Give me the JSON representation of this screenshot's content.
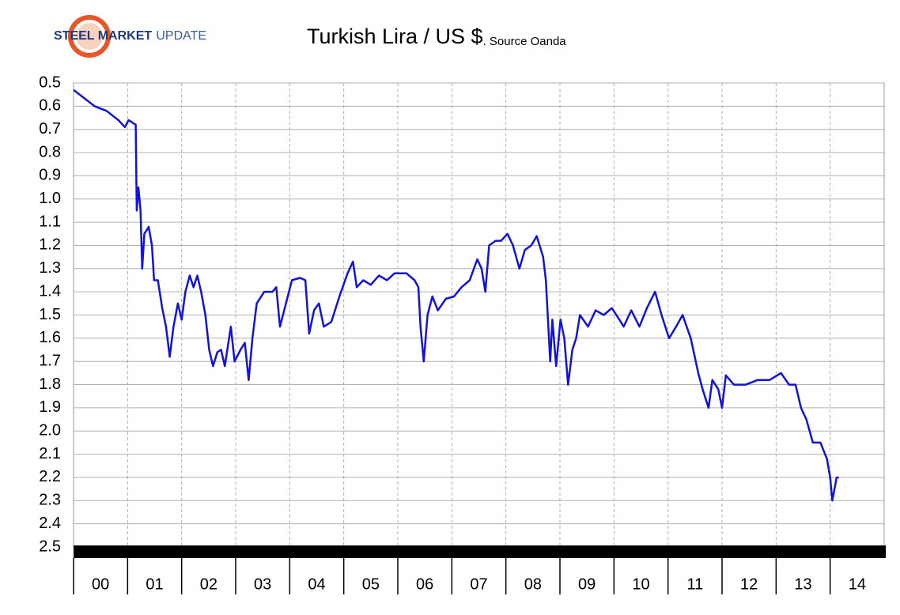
{
  "logo": {
    "bold": "STEEL MARKET",
    "light": "UPDATE"
  },
  "chart_data": {
    "type": "line",
    "title": "Turkish Lira / US $",
    "subtitle": ". Source Oanda",
    "categories": [
      "00",
      "01",
      "02",
      "03",
      "04",
      "05",
      "06",
      "07",
      "08",
      "09",
      "10",
      "11",
      "12",
      "13",
      "14"
    ],
    "xlim": [
      0,
      15
    ],
    "ylim": [
      2.5,
      0.5
    ],
    "yticks": [
      0.5,
      0.6,
      0.7,
      0.8,
      0.9,
      {
        "value": 1,
        "label": "1.0"
      },
      1.1,
      1.2,
      1.3,
      1.4,
      1.5,
      1.6,
      1.7,
      1.8,
      1.9,
      {
        "value": 2,
        "label": "2.0"
      },
      2.1,
      2.2,
      2.3,
      2.4,
      2.5
    ],
    "grid": true,
    "series": [
      {
        "color": "#1212e0",
        "x": [
          0,
          0.39,
          0.61,
          0.83,
          0.95,
          1.02,
          1.15,
          1.17,
          1.2,
          1.24,
          1.27,
          1.31,
          1.39,
          1.45,
          1.49,
          1.56,
          1.64,
          1.71,
          1.78,
          1.85,
          1.93,
          2.0,
          2.07,
          2.15,
          2.22,
          2.29,
          2.36,
          2.44,
          2.51,
          2.58,
          2.66,
          2.73,
          2.8,
          2.91,
          2.98,
          3.09,
          3.17,
          3.24,
          3.31,
          3.39,
          3.53,
          3.68,
          3.75,
          3.82,
          3.93,
          4.04,
          4.19,
          4.29,
          4.36,
          4.45,
          4.54,
          4.63,
          4.77,
          4.92,
          5.07,
          5.17,
          5.24,
          5.36,
          5.5,
          5.65,
          5.8,
          5.94,
          6.16,
          6.31,
          6.38,
          6.42,
          6.48,
          6.55,
          6.64,
          6.74,
          6.89,
          7.04,
          7.18,
          7.33,
          7.47,
          7.55,
          7.62,
          7.69,
          7.81,
          7.91,
          8.03,
          8.13,
          8.25,
          8.35,
          8.47,
          8.57,
          8.69,
          8.74,
          8.82,
          8.86,
          8.93,
          9.01,
          9.08,
          9.15,
          9.23,
          9.3,
          9.37,
          9.52,
          9.66,
          9.81,
          9.96,
          10.1,
          10.18,
          10.32,
          10.47,
          10.61,
          10.76,
          10.88,
          11.02,
          11.15,
          11.27,
          11.42,
          11.56,
          11.64,
          11.75,
          11.82,
          11.93,
          12.0,
          12.07,
          12.22,
          12.44,
          12.66,
          12.88,
          13.09,
          13.24,
          13.36,
          13.46,
          13.56,
          13.68,
          13.82,
          13.94,
          14.0,
          14.04,
          14.12,
          14.16
        ],
        "values": [
          0.53,
          0.6,
          0.62,
          0.66,
          0.69,
          0.66,
          0.68,
          1.05,
          0.95,
          1.05,
          1.3,
          1.15,
          1.12,
          1.2,
          1.35,
          1.35,
          1.47,
          1.55,
          1.68,
          1.55,
          1.45,
          1.52,
          1.4,
          1.33,
          1.38,
          1.33,
          1.4,
          1.5,
          1.65,
          1.72,
          1.66,
          1.65,
          1.72,
          1.55,
          1.7,
          1.65,
          1.62,
          1.78,
          1.6,
          1.45,
          1.4,
          1.4,
          1.38,
          1.55,
          1.45,
          1.35,
          1.34,
          1.35,
          1.58,
          1.48,
          1.45,
          1.55,
          1.53,
          1.42,
          1.32,
          1.27,
          1.38,
          1.35,
          1.37,
          1.33,
          1.35,
          1.32,
          1.32,
          1.35,
          1.38,
          1.55,
          1.7,
          1.5,
          1.42,
          1.48,
          1.43,
          1.42,
          1.38,
          1.35,
          1.26,
          1.3,
          1.4,
          1.2,
          1.18,
          1.18,
          1.15,
          1.2,
          1.3,
          1.22,
          1.2,
          1.16,
          1.25,
          1.35,
          1.7,
          1.52,
          1.72,
          1.52,
          1.6,
          1.8,
          1.65,
          1.6,
          1.5,
          1.55,
          1.48,
          1.5,
          1.47,
          1.52,
          1.55,
          1.48,
          1.55,
          1.47,
          1.4,
          1.5,
          1.6,
          1.55,
          1.5,
          1.6,
          1.75,
          1.82,
          1.9,
          1.78,
          1.82,
          1.9,
          1.76,
          1.8,
          1.8,
          1.78,
          1.78,
          1.75,
          1.8,
          1.8,
          1.9,
          1.95,
          2.05,
          2.05,
          2.12,
          2.2,
          2.3,
          2.2,
          2.2
        ]
      }
    ]
  }
}
